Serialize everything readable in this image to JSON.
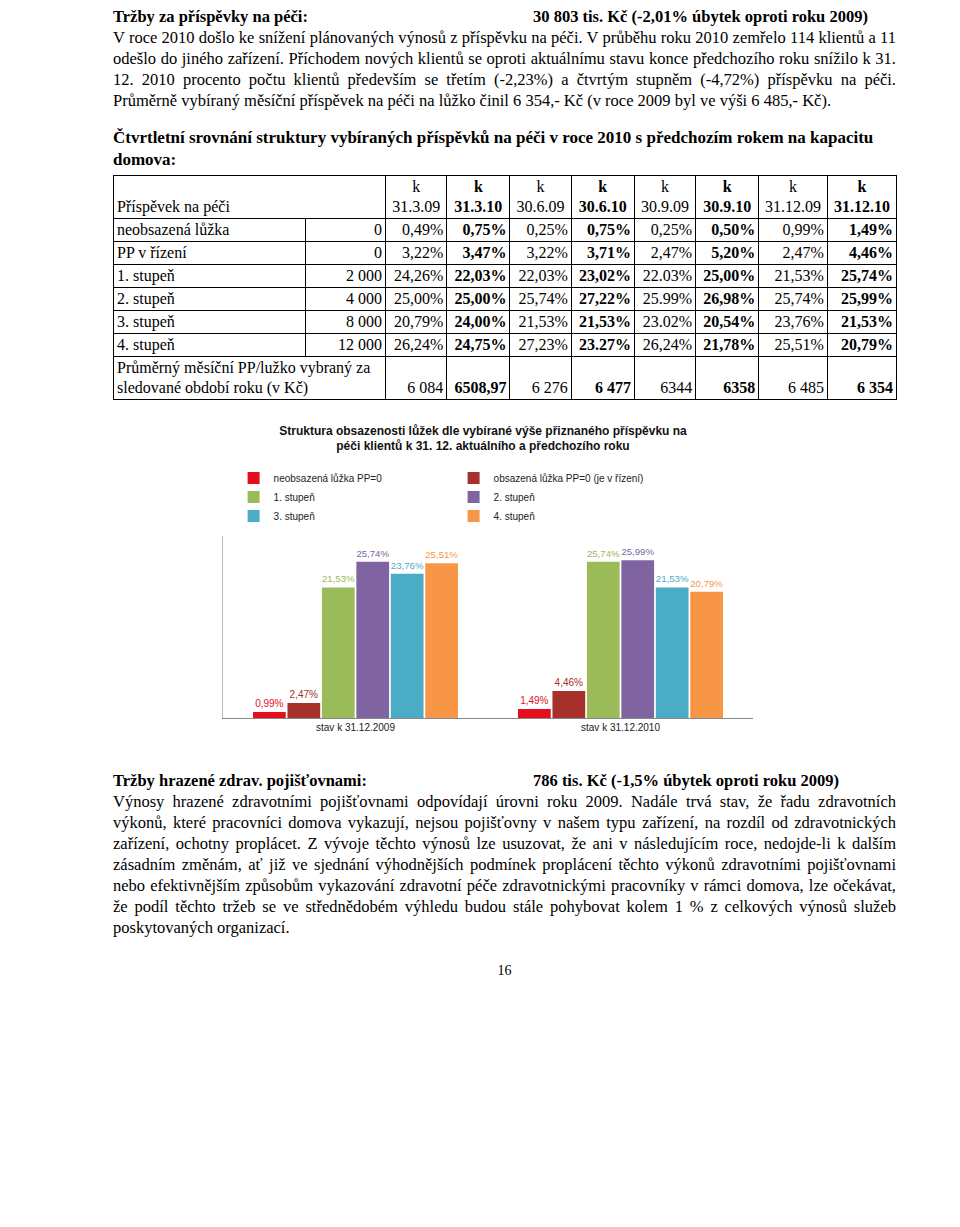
{
  "section1": {
    "heading": "Tržby za příspěvky na péči:",
    "heading_value": "30 803 tis. Kč (-2,01% úbytek oproti roku 2009)",
    "text": "V roce 2010 došlo ke snížení plánovaných výnosů z příspěvku na péči. V průběhu roku 2010 zemřelo 114 klientů a 11 odešlo do jiného zařízení. Příchodem nových klientů se oproti aktuálnímu stavu konce předchozího roku snížilo k 31. 12. 2010 procento počtu klientů především se třetím (-2,23%) a čtvrtým stupněm (-4,72%) příspěvku na péči. Průměrně vybíraný měsíční příspěvek na péči na lůžko činil 6 354,- Kč (v roce 2009 byl ve výši 6 485,- Kč)."
  },
  "table_title": "Čtvrtletní srovnání struktury vybíraných příspěvků na péči v roce 2010 s předchozím rokem na kapacitu domova:",
  "table": {
    "header": [
      "Příspěvek na péči",
      "k 31.3.09",
      "k 31.3.10",
      "k 30.6.09",
      "k 30.6.10",
      "k 30.9.09",
      "k 30.9.10",
      "k 31.12.09",
      "k 31.12.10"
    ],
    "rows": [
      [
        "neobsazená lůžka",
        "0",
        "0,49%",
        "0,75%",
        "0,25%",
        "0,75%",
        "0,25%",
        "0,50%",
        "0,99%",
        "1,49%"
      ],
      [
        "PP v řízení",
        "0",
        "3,22%",
        "3,47%",
        "3,22%",
        "3,71%",
        "2,47%",
        "5,20%",
        "2,47%",
        "4,46%"
      ],
      [
        "1. stupeň",
        "2 000",
        "24,26%",
        "22,03%",
        "22,03%",
        "23,02%",
        "22.03%",
        "25,00%",
        "21,53%",
        "25,74%"
      ],
      [
        "2. stupeň",
        "4 000",
        "25,00%",
        "25,00%",
        "25,74%",
        "27,22%",
        "25.99%",
        "26,98%",
        "25,74%",
        "25,99%"
      ],
      [
        "3. stupeň",
        "8 000",
        "20,79%",
        "24,00%",
        "21,53%",
        "21,53%",
        "23.02%",
        "20,54%",
        "23,76%",
        "21,53%"
      ],
      [
        "4. stupeň",
        "12 000",
        "26,24%",
        "24,75%",
        "27,23%",
        "23.27%",
        "26,24%",
        "21,78%",
        "25,51%",
        "20,79%"
      ],
      [
        "Průměrný měsíční PP/lužko vybraný za sledované období roku (v Kč)",
        "6 084",
        "6508,97",
        "6 276",
        "6 477",
        "6344",
        "6358",
        "6 485",
        "6 354"
      ]
    ]
  },
  "chart_data": {
    "type": "bar",
    "title": "Struktura obsazenosti lůžek dle vybírané výše přiznaného příspěvku na\npéči klientů k 31. 12. aktuálního a předchozího roku",
    "categories": [
      "stav k 31.12.2009",
      "stav k 31.12.2010"
    ],
    "series": [
      {
        "name": "neobsazená lůžka PP=0",
        "color": "#e3101b",
        "values": [
          0.99,
          1.49
        ],
        "value_labels": [
          "0,99%",
          "1,49%"
        ]
      },
      {
        "name": "obsazená lůžka PP=0 (je v řízení)",
        "color": "#a6302c",
        "values": [
          2.47,
          4.46
        ],
        "value_labels": [
          "2,47%",
          "4,46%"
        ]
      },
      {
        "name": "1. stupeň",
        "color": "#9bbb59",
        "values": [
          21.53,
          25.74
        ],
        "value_labels": [
          "21,53%",
          "25,74%"
        ]
      },
      {
        "name": "2. stupeň",
        "color": "#8064a2",
        "values": [
          25.74,
          25.99
        ],
        "value_labels": [
          "25,74%",
          "25,99%"
        ]
      },
      {
        "name": "3. stupeň",
        "color": "#4bacc6",
        "values": [
          23.76,
          21.53
        ],
        "value_labels": [
          "23,76%",
          "21,53%"
        ]
      },
      {
        "name": "4. stupeň",
        "color": "#f79646",
        "values": [
          25.51,
          20.79
        ],
        "value_labels": [
          "25,51%",
          "20,79%"
        ]
      }
    ],
    "ylim": [
      0,
      30
    ],
    "grid": false,
    "legend": "top",
    "data_labels": true,
    "tick_labels": "x"
  },
  "section2": {
    "heading": "Tržby hrazené zdrav. pojišťovnami:",
    "heading_value": "786 tis. Kč (-1,5% úbytek oproti roku 2009)",
    "text": "Výnosy hrazené zdravotními pojišťovnami odpovídají úrovni roku 2009. Nadále trvá stav, že řadu zdravotních výkonů, které pracovníci domova vykazují, nejsou pojišťovny v našem typu zařízení, na rozdíl od zdravotnických zařízení, ochotny proplácet. Z vývoje těchto výnosů lze usuzovat, že ani v následujícím roce, nedojde-li k dalším zásadním změnám, ať již ve sjednání výhodnějších podmínek proplácení těchto výkonů zdravotními pojišťovnami nebo efektivnějším způsobům vykazování zdravotní péče zdravotnickými pracovníky v rámci domova, lze očekávat, že podíl těchto tržeb se ve střednědobém výhledu budou stále pohybovat kolem 1 % z celkových výnosů služeb poskytovaných organizací."
  },
  "page_number": "16"
}
